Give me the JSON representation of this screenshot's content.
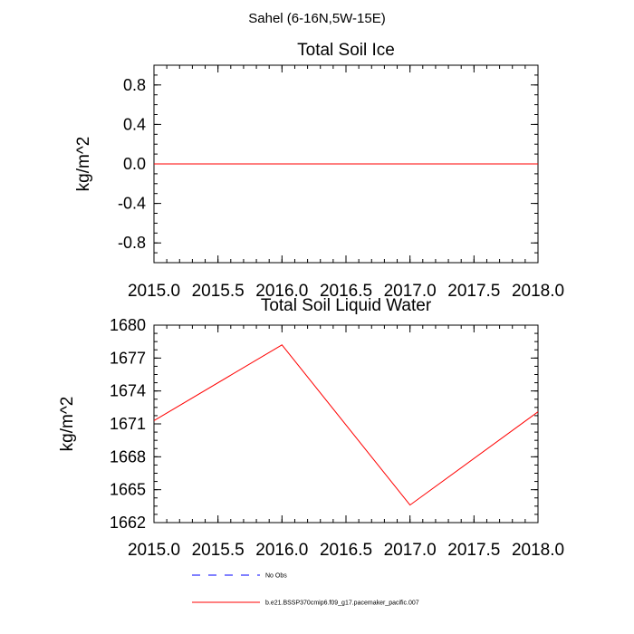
{
  "figure": {
    "suptitle": "Sahel (6-16N,5W-15E)"
  },
  "colors": {
    "model_line": "#ff0000",
    "obs_line": "#0000ff",
    "axis": "#000000"
  },
  "legend": [
    {
      "label": "No Obs",
      "style": "dashed",
      "color": "#0000ff"
    },
    {
      "label": "b.e21.BSSP370cmip6.f09_g17.pacemaker_pacific.007",
      "style": "solid",
      "color": "#ff0000"
    }
  ],
  "chart_data": [
    {
      "type": "line",
      "title": "Total Soil Ice",
      "xlabel": "",
      "ylabel": "kg/m^2",
      "xlim": [
        2015.0,
        2018.0
      ],
      "ylim": [
        -1.0,
        1.0
      ],
      "xticks": [
        2015.0,
        2015.5,
        2016.0,
        2016.5,
        2017.0,
        2017.5,
        2018.0
      ],
      "xtick_labels": [
        "2015.0",
        "2015.5",
        "2016.0",
        "2016.5",
        "2017.0",
        "2017.5",
        "2018.0"
      ],
      "yticks": [
        -0.8,
        -0.4,
        0.0,
        0.4,
        0.8
      ],
      "ytick_labels": [
        "-0.8",
        "-0.4",
        "0.0",
        "0.4",
        "0.8"
      ],
      "series": [
        {
          "name": "b.e21.BSSP370cmip6.f09_g17.pacemaker_pacific.007",
          "color": "#ff0000",
          "x": [
            2015.0,
            2016.0,
            2017.0,
            2018.0
          ],
          "y": [
            0.0,
            0.0,
            0.0,
            0.0
          ]
        }
      ]
    },
    {
      "type": "line",
      "title": "Total Soil Liquid Water",
      "xlabel": "",
      "ylabel": "kg/m^2",
      "xlim": [
        2015.0,
        2018.0
      ],
      "ylim": [
        1662,
        1680
      ],
      "xticks": [
        2015.0,
        2015.5,
        2016.0,
        2016.5,
        2017.0,
        2017.5,
        2018.0
      ],
      "xtick_labels": [
        "2015.0",
        "2015.5",
        "2016.0",
        "2016.5",
        "2017.0",
        "2017.5",
        "2018.0"
      ],
      "yticks": [
        1662,
        1665,
        1668,
        1671,
        1674,
        1677,
        1680
      ],
      "ytick_labels": [
        "1662",
        "1665",
        "1668",
        "1671",
        "1674",
        "1677",
        "1680"
      ],
      "series": [
        {
          "name": "b.e21.BSSP370cmip6.f09_g17.pacemaker_pacific.007",
          "color": "#ff0000",
          "x": [
            2015.0,
            2016.0,
            2017.0,
            2018.0
          ],
          "y": [
            1671.3,
            1678.2,
            1663.6,
            1672.1
          ]
        }
      ]
    }
  ]
}
